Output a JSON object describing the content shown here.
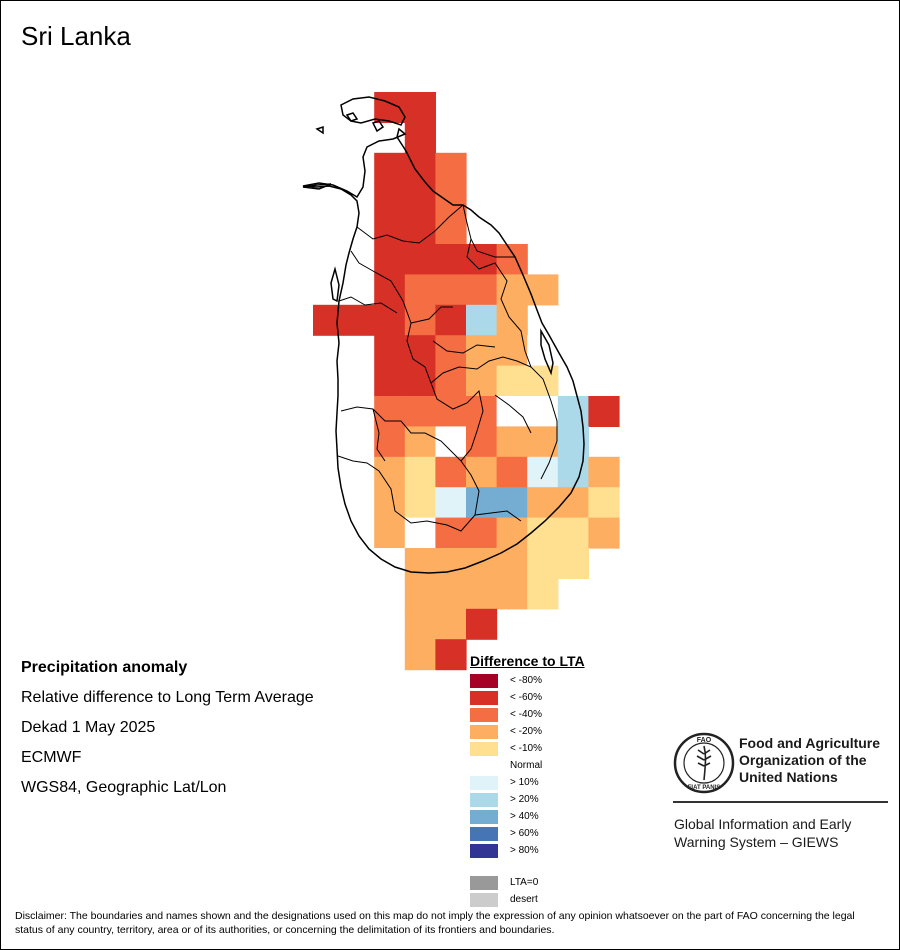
{
  "title": "Sri Lanka",
  "info": {
    "heading": "Precipitation anomaly",
    "line1": "Relative difference to Long Term Average",
    "line2": "Dekad 1 May 2025",
    "line3": "ECMWF",
    "line4": "WGS84, Geographic Lat/Lon"
  },
  "legend": {
    "title": "Difference to LTA",
    "items": [
      {
        "label": "< -80%",
        "color": "#a50026"
      },
      {
        "label": "< -60%",
        "color": "#d73027"
      },
      {
        "label": "< -40%",
        "color": "#f46d43"
      },
      {
        "label": "< -20%",
        "color": "#fdae61"
      },
      {
        "label": "< -10%",
        "color": "#fee090"
      },
      {
        "label": "Normal",
        "color": "#ffffff"
      },
      {
        "label": "> 10%",
        "color": "#e0f3f8"
      },
      {
        "label": "> 20%",
        "color": "#abd9e9"
      },
      {
        "label": "> 40%",
        "color": "#74add1"
      },
      {
        "label": "> 60%",
        "color": "#4575b4"
      },
      {
        "label": "> 80%",
        "color": "#313695"
      },
      {
        "label": "LTA=0",
        "color": "#999999"
      },
      {
        "label": "desert",
        "color": "#cccccc"
      }
    ]
  },
  "organization": {
    "logo_text": "FAO",
    "logo_ring_text": "FIAT PANIS",
    "name": [
      "Food and Agriculture",
      "Organization of the",
      "United Nations"
    ],
    "system": [
      "Global Information and Early",
      "Warning System – GIEWS"
    ]
  },
  "disclaimer": "Disclaimer: The boundaries and names shown and the designations used on this map do not imply the expression of any opinion whatsoever on the part of FAO concerning the legal status of any country, territory, area or of its authorities, or concerning the delimitation of its frontiers and boundaries."
}
